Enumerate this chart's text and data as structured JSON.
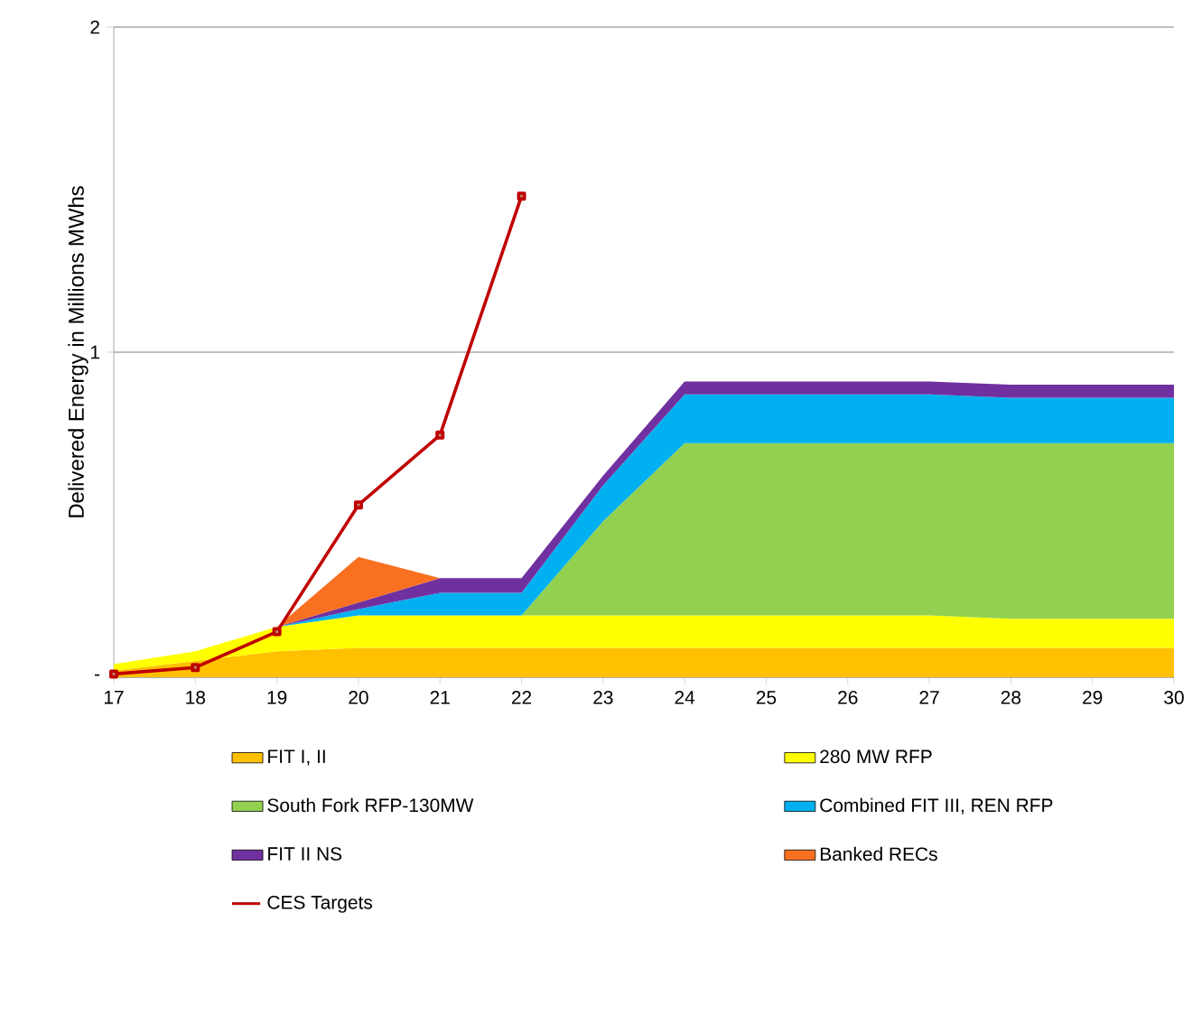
{
  "chart_data": {
    "type": "area",
    "stacked": true,
    "ylabel": "Delivered Energy in Millions MWhs",
    "x": [
      17,
      18,
      19,
      20,
      21,
      22,
      23,
      24,
      25,
      26,
      27,
      28,
      29,
      30
    ],
    "xlim": [
      17,
      30
    ],
    "xticks": [
      17,
      18,
      19,
      20,
      21,
      22,
      23,
      24,
      25,
      26,
      27,
      28,
      29,
      30
    ],
    "ylim": [
      0,
      2
    ],
    "yticks": [
      {
        "value": 0,
        "label": "-"
      },
      1,
      2
    ],
    "grid": "y",
    "legend": "bottom",
    "series": [
      {
        "name": "FIT I, II",
        "color": "#ffc000",
        "values": [
          0.02,
          0.05,
          0.08,
          0.09,
          0.09,
          0.09,
          0.09,
          0.09,
          0.09,
          0.09,
          0.09,
          0.09,
          0.09,
          0.09
        ]
      },
      {
        "name": "280 MW RFP",
        "color": "#ffff00",
        "values": [
          0.02,
          0.03,
          0.075,
          0.1,
          0.1,
          0.1,
          0.1,
          0.1,
          0.1,
          0.1,
          0.1,
          0.09,
          0.09,
          0.09
        ]
      },
      {
        "name": "South Fork RFP-130MW",
        "color": "#92d050",
        "values": [
          0,
          0,
          0,
          0,
          0,
          0,
          0.29,
          0.53,
          0.53,
          0.53,
          0.53,
          0.54,
          0.54,
          0.54
        ]
      },
      {
        "name": "Combined FIT III, REN RFP",
        "color": "#00b0f0",
        "values": [
          0,
          0,
          0,
          0.02,
          0.07,
          0.07,
          0.11,
          0.15,
          0.15,
          0.15,
          0.15,
          0.14,
          0.14,
          0.14
        ]
      },
      {
        "name": "FIT II NS",
        "color": "#7030a0",
        "values": [
          0,
          0,
          0,
          0.02,
          0.045,
          0.045,
          0.03,
          0.04,
          0.04,
          0.04,
          0.04,
          0.04,
          0.04,
          0.04
        ]
      },
      {
        "name": "Banked RECs",
        "color": "#f87020",
        "values": [
          null,
          null,
          0,
          0.14,
          0,
          null,
          null,
          null,
          null,
          null,
          null,
          null,
          null,
          null
        ]
      },
      {
        "name": "CES Targets",
        "type": "line",
        "color": "#c00000",
        "marker": "square",
        "values": [
          0.01,
          0.03,
          0.14,
          0.53,
          0.745,
          1.48,
          null,
          null,
          null,
          null,
          null,
          null,
          null,
          null
        ]
      }
    ]
  }
}
